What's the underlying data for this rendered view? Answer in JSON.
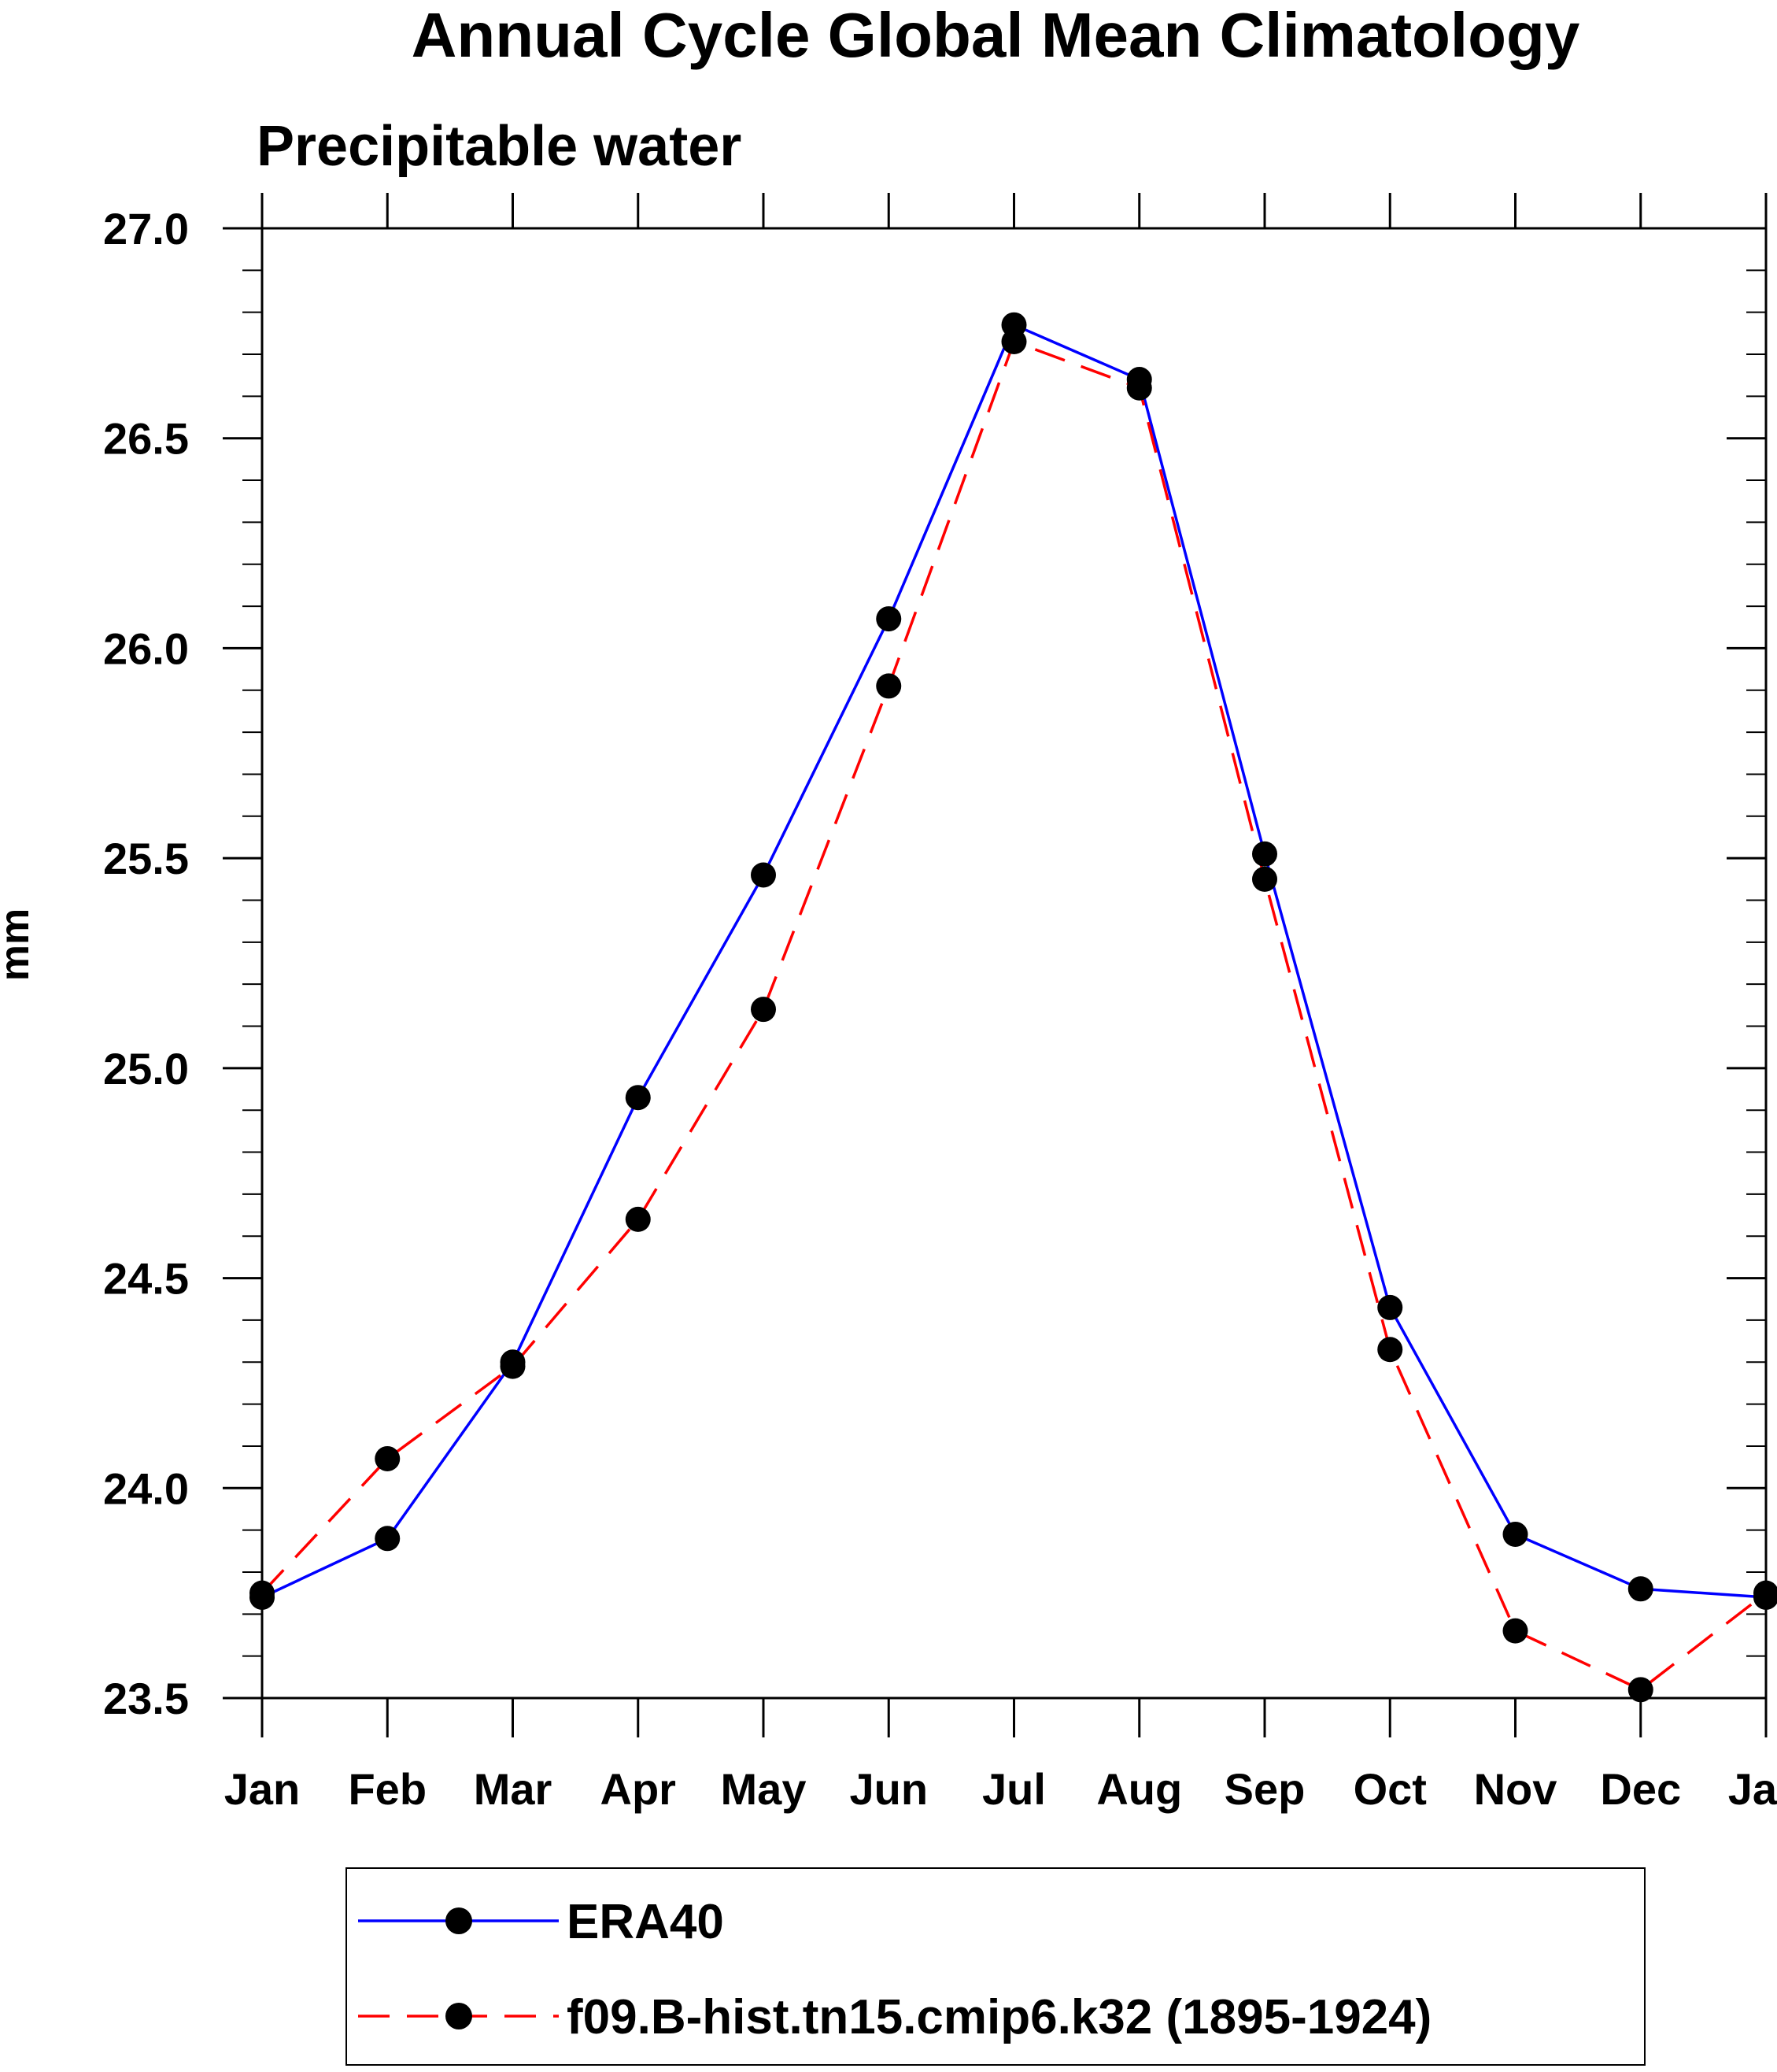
{
  "chart_data": {
    "type": "line",
    "title": "Annual Cycle Global Mean Climatology",
    "subtitle": "Precipitable water",
    "ylabel": "mm",
    "xlabel": "",
    "categories": [
      "Jan",
      "Feb",
      "Mar",
      "Apr",
      "May",
      "Jun",
      "Jul",
      "Aug",
      "Sep",
      "Oct",
      "Nov",
      "Dec",
      "Jan"
    ],
    "ylim": [
      23.5,
      27.0
    ],
    "yticks": [
      "23.5",
      "24.0",
      "24.5",
      "25.0",
      "25.5",
      "26.0",
      "26.5",
      "27.0"
    ],
    "grid": false,
    "legend_position": "bottom",
    "series": [
      {
        "name": "ERA40",
        "color": "#0000ff",
        "line_style": "solid",
        "marker": "circle",
        "values": [
          23.74,
          23.88,
          24.3,
          24.93,
          25.46,
          26.07,
          26.77,
          26.64,
          25.51,
          24.43,
          23.89,
          23.76,
          23.74
        ]
      },
      {
        "name": "f09.B-hist.tn15.cmip6.k32 (1895-1924)",
        "color": "#ff0000",
        "line_style": "dashed",
        "marker": "circle",
        "values": [
          23.75,
          24.07,
          24.29,
          24.64,
          25.14,
          25.91,
          26.73,
          26.62,
          25.45,
          24.33,
          23.66,
          23.52,
          23.75
        ]
      }
    ]
  }
}
